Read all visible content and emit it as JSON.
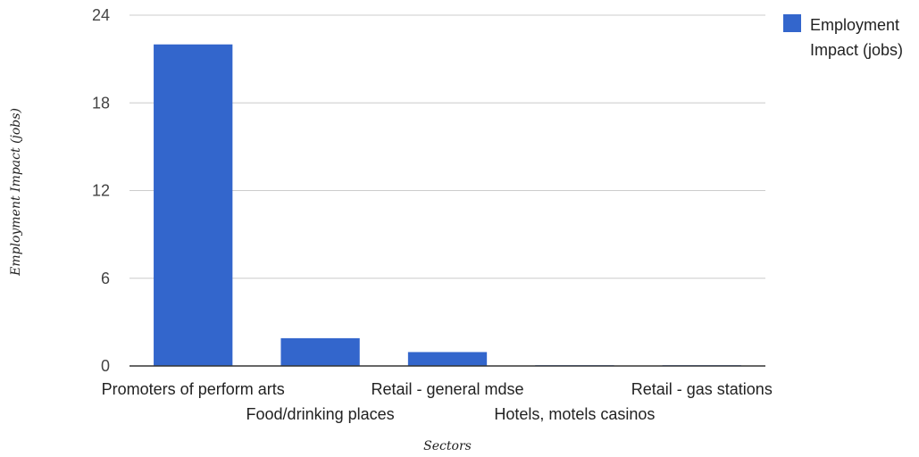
{
  "chart_data": {
    "type": "bar",
    "categories": [
      "Promoters of perform arts",
      "Food/drinking places",
      "Retail - general mdse",
      "Hotels, motels casinos",
      "Retail - gas stations"
    ],
    "series": [
      {
        "name": "Employment Impact (jobs)",
        "legend_lines": [
          "Employment",
          "Impact (jobs)"
        ],
        "color": "#3366cc",
        "values": [
          22,
          1.9,
          0.95,
          0.05,
          0.05
        ]
      }
    ],
    "yticks": [
      "24",
      "18",
      "12",
      "6",
      "0"
    ],
    "ylim": [
      0,
      24
    ],
    "xlabel": "Sectors",
    "ylabel": "Employment Impact (jobs)",
    "grid": true,
    "legend_position": "right"
  }
}
